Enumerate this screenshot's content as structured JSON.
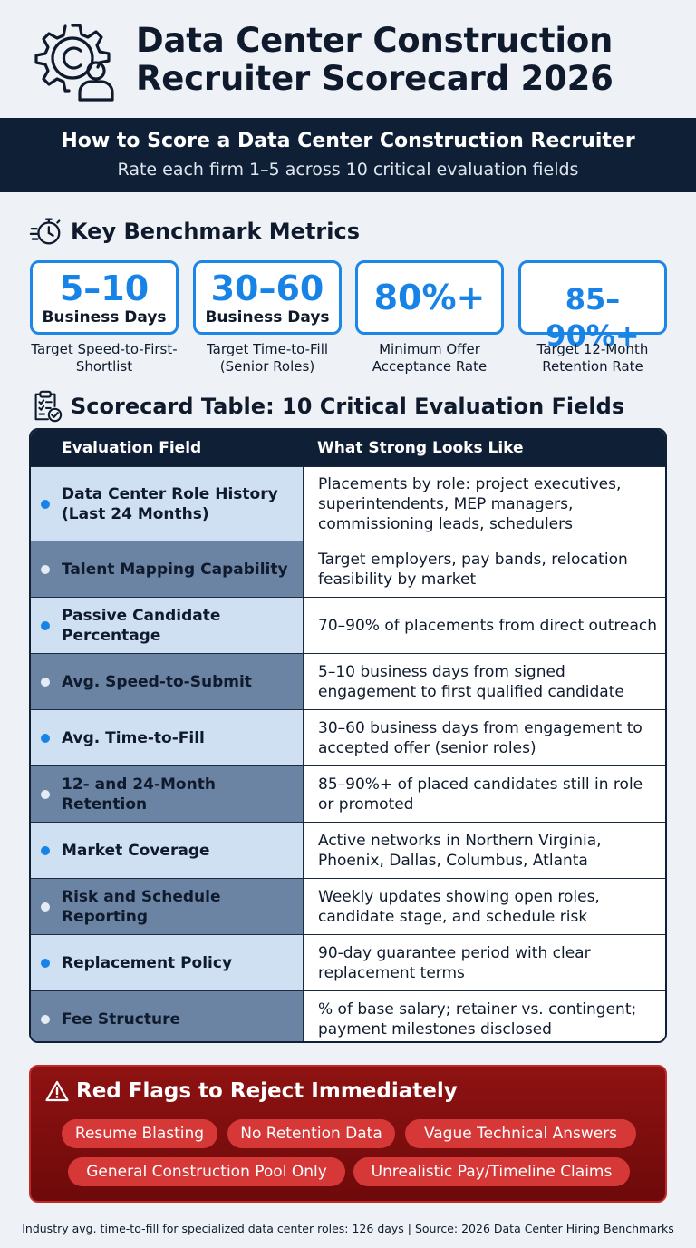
{
  "header": {
    "logo_icon": "gear-recruiter-icon",
    "title_line1": "Data Center Construction",
    "title_line2": "Recruiter Scorecard 2026"
  },
  "banner": {
    "title": "How to Score a Data Center Construction Recruiter",
    "subtitle": "Rate each firm 1–5 across 10 critical evaluation fields"
  },
  "benchmarks": {
    "heading": "Key Benchmark Metrics",
    "icon": "stopwatch-icon",
    "metrics": [
      {
        "value": "5–10",
        "unit": "Business Days",
        "label": "Target Speed-to-First-Shortlist"
      },
      {
        "value": "30–60",
        "unit": "Business Days",
        "label": "Target Time-to-Fill (Senior Roles)"
      },
      {
        "value": "80%+",
        "unit": "",
        "label": "Minimum Offer Acceptance Rate"
      },
      {
        "value": "85–90%+",
        "unit": "",
        "label": "Target 12-Month Retention Rate"
      }
    ]
  },
  "scorecard": {
    "heading": "Scorecard Table: 10 Critical Evaluation Fields",
    "icon": "clipboard-check-icon",
    "col_field": "Evaluation Field",
    "col_desc": "What Strong Looks Like",
    "rows": [
      {
        "field": "Data Center Role History (Last 24 Months)",
        "desc": "Placements by role: project executives, superintendents, MEP managers, commissioning leads, schedulers"
      },
      {
        "field": "Talent Mapping Capability",
        "desc": "Target employers, pay bands, relocation feasibility by market"
      },
      {
        "field": "Passive Candidate Percentage",
        "desc": "70–90% of placements from direct outreach"
      },
      {
        "field": "Avg. Speed-to-Submit",
        "desc": "5–10 business days from signed engagement to first qualified candidate"
      },
      {
        "field": "Avg. Time-to-Fill",
        "desc": "30–60 business days from engagement to accepted offer (senior roles)"
      },
      {
        "field": "12- and 24-Month Retention",
        "desc": "85–90%+ of placed candidates still in role or promoted"
      },
      {
        "field": "Market Coverage",
        "desc": "Active networks in Northern Virginia, Phoenix, Dallas, Columbus, Atlanta"
      },
      {
        "field": "Risk and Schedule Reporting",
        "desc": "Weekly updates showing open roles, candidate stage, and schedule risk"
      },
      {
        "field": "Replacement Policy",
        "desc": "90-day guarantee period with clear replacement terms"
      },
      {
        "field": "Fee Structure",
        "desc": "% of base salary; retainer vs. contingent; payment milestones disclosed"
      }
    ]
  },
  "red_flags": {
    "heading": "Red Flags to Reject Immediately",
    "icon": "warning-triangle-icon",
    "items": [
      "Resume Blasting",
      "No Retention Data",
      "Vague Technical Answers",
      "General Construction Pool Only",
      "Unrealistic Pay/Timeline Claims"
    ]
  },
  "footer": "Industry avg. time-to-fill for specialized data center roles: 126 days | Source: 2026 Data Center Hiring Benchmarks"
}
